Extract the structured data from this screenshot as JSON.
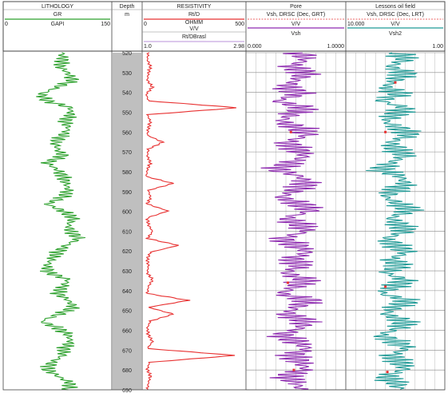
{
  "chart_data": {
    "type": "line",
    "title": "",
    "tracks": [
      {
        "title": "LITHOLOGY",
        "curves": [
          {
            "name": "GR",
            "unit": "GAPI",
            "min": "0",
            "max": "150",
            "color": "#2ca02c"
          }
        ]
      },
      {
        "title": "Depth",
        "unit": "m"
      },
      {
        "title": "RESISTIVITY",
        "curves": [
          {
            "name": "Rt/D",
            "color": "#e83030"
          },
          {
            "name": "OHMM",
            "unit": "V/V",
            "min": "0",
            "max": "500"
          },
          {
            "name": "Rt/DBrasl",
            "min": "1.0",
            "max": "2.98"
          }
        ]
      },
      {
        "title": "Pore",
        "curves": [
          {
            "name": "Vsh, DRSC (Dec, GRT)",
            "unit": "V/V",
            "min": "0.000",
            "max": "1.0000",
            "color": "#8e2bb0"
          },
          {
            "name": "Vsh"
          }
        ]
      },
      {
        "title": "Lessons oil field",
        "curves": [
          {
            "name": "Vsh, DRSC (Dec, LRT)",
            "unit": "V/V",
            "min": "10.000",
            "max": "1.00",
            "color": "#1f9a96"
          },
          {
            "name": "Vsh2"
          }
        ]
      }
    ],
    "depth_ticks": [
      "520",
      "530",
      "540",
      "550",
      "560",
      "570",
      "580",
      "590",
      "600",
      "610",
      "620",
      "630",
      "640",
      "650",
      "660",
      "670",
      "680",
      "690"
    ],
    "depth_range": [
      520,
      690
    ],
    "gr_x": [
      0.54,
      0.55,
      0.52,
      0.6,
      0.64,
      0.5,
      0.35,
      0.4,
      0.62,
      0.62,
      0.57,
      0.6,
      0.55,
      0.48,
      0.5,
      0.55,
      0.4,
      0.5,
      0.55,
      0.58,
      0.6,
      0.55,
      0.4,
      0.55,
      0.65,
      0.6,
      0.62,
      0.7,
      0.58,
      0.5,
      0.45,
      0.4,
      0.42,
      0.6,
      0.55,
      0.5,
      0.6,
      0.65,
      0.52,
      0.35,
      0.5,
      0.6,
      0.62,
      0.56,
      0.55,
      0.45,
      0.4,
      0.5,
      0.62,
      0.6
    ],
    "res_x": [
      0.06,
      0.05,
      0.08,
      0.06,
      0.05,
      0.1,
      0.04,
      0.06,
      0.92,
      0.05,
      0.08,
      0.06,
      0.05,
      0.2,
      0.06,
      0.05,
      0.08,
      0.05,
      0.04,
      0.3,
      0.06,
      0.08,
      0.05,
      0.25,
      0.05,
      0.06,
      0.1,
      0.05,
      0.35,
      0.08,
      0.05,
      0.06,
      0.05,
      0.1,
      0.06,
      0.05,
      0.45,
      0.06,
      0.3,
      0.08,
      0.05,
      0.06,
      0.1,
      0.05,
      0.9,
      0.07,
      0.05,
      0.08,
      0.06,
      0.05
    ],
    "vsh_x": [
      0.55,
      0.6,
      0.45,
      0.6,
      0.5,
      0.4,
      0.55,
      0.3,
      0.6,
      0.45,
      0.35,
      0.55,
      0.62,
      0.4,
      0.5,
      0.6,
      0.45,
      0.3,
      0.55,
      0.6,
      0.5,
      0.35,
      0.55,
      0.65,
      0.4,
      0.55,
      0.6,
      0.35,
      0.5,
      0.62,
      0.45,
      0.55,
      0.4,
      0.6,
      0.5,
      0.35,
      0.65,
      0.5,
      0.4,
      0.6,
      0.55,
      0.35,
      0.5,
      0.62,
      0.45,
      0.55,
      0.6,
      0.4,
      0.5,
      0.55
    ],
    "vsh2_x": [
      0.55,
      0.6,
      0.45,
      0.6,
      0.5,
      0.4,
      0.55,
      0.35,
      0.6,
      0.5,
      0.4,
      0.55,
      0.65,
      0.45,
      0.5,
      0.6,
      0.45,
      0.35,
      0.55,
      0.6,
      0.5,
      0.4,
      0.55,
      0.65,
      0.45,
      0.55,
      0.6,
      0.4,
      0.5,
      0.62,
      0.45,
      0.55,
      0.4,
      0.6,
      0.5,
      0.35,
      0.65,
      0.5,
      0.4,
      0.6,
      0.55,
      0.35,
      0.5,
      0.62,
      0.45,
      0.55,
      0.6,
      0.4,
      0.5,
      0.55
    ]
  }
}
